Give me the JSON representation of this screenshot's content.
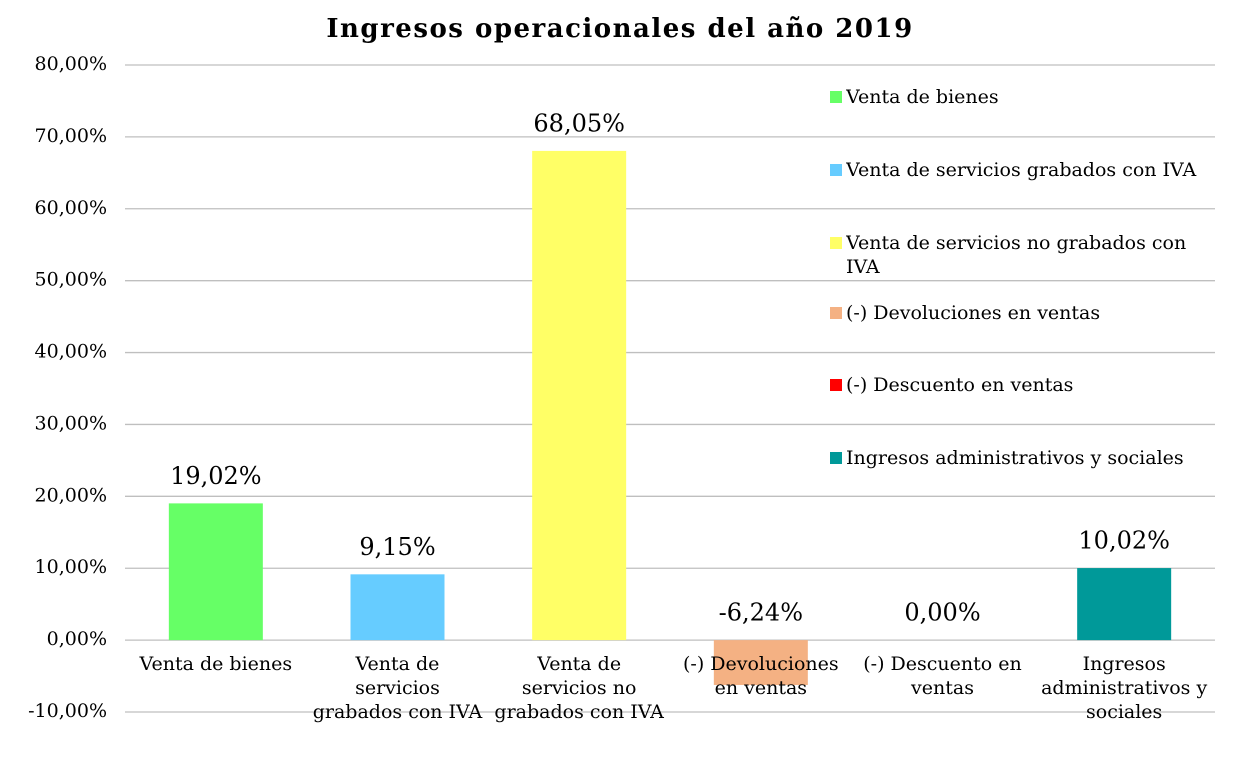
{
  "chart_data": {
    "type": "bar",
    "title": "Ingresos operacionales del año 2019",
    "categories": [
      "Venta de bienes",
      "Venta de servicios grabados con IVA",
      "Venta de servicios no grabados con IVA",
      "(-) Devoluciones en ventas",
      "(-) Descuento en ventas",
      "Ingresos administrativos y sociales"
    ],
    "values": [
      19.02,
      9.15,
      68.05,
      -6.24,
      0,
      10.02
    ],
    "value_labels": [
      "19,02%",
      "9,15%",
      "68,05%",
      "-6,24%",
      "0,00%",
      "10,02%"
    ],
    "colors": [
      "#66ff66",
      "#66ccff",
      "#ffff66",
      "#f4b183",
      "#ff0000",
      "#009999"
    ],
    "ylim": [
      -10,
      80
    ],
    "yticks": [
      {
        "value": -10,
        "label": "-10,00%"
      },
      {
        "value": 0,
        "label": "0,00%"
      },
      {
        "value": 10,
        "label": "10,00%"
      },
      {
        "value": 20,
        "label": "20,00%"
      },
      {
        "value": 30,
        "label": "30,00%"
      },
      {
        "value": 40,
        "label": "40,00%"
      },
      {
        "value": 50,
        "label": "50,00%"
      },
      {
        "value": 60,
        "label": "60,00%"
      },
      {
        "value": 70,
        "label": "70,00%"
      },
      {
        "value": 80,
        "label": "80,00%"
      }
    ],
    "grid": true,
    "legend": "right"
  }
}
